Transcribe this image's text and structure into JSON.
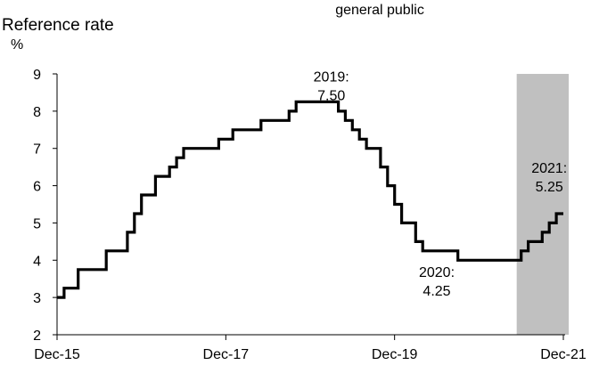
{
  "header": {
    "top_text": "general public",
    "ylabel": "Reference rate",
    "yunit": "%"
  },
  "chart_data": {
    "type": "line",
    "step": true,
    "title": "",
    "xlabel": "",
    "ylabel": "Reference rate",
    "unit": "%",
    "ylim": [
      2,
      9
    ],
    "yticks": [
      2,
      3,
      4,
      5,
      6,
      7,
      8,
      9
    ],
    "xticks": [
      "Dec-15",
      "Dec-17",
      "Dec-19",
      "Dec-21"
    ],
    "grid": false,
    "shaded_region": {
      "from": "2021-06",
      "to": "2021-12",
      "color": "#c0c0c0"
    },
    "series": [
      {
        "color": "#000000",
        "points": [
          [
            "2015-12",
            3.0
          ],
          [
            "2016-01",
            3.25
          ],
          [
            "2016-03",
            3.75
          ],
          [
            "2016-07",
            4.25
          ],
          [
            "2016-10",
            4.75
          ],
          [
            "2016-11",
            5.25
          ],
          [
            "2016-12",
            5.75
          ],
          [
            "2017-02",
            6.25
          ],
          [
            "2017-04",
            6.5
          ],
          [
            "2017-05",
            6.75
          ],
          [
            "2017-06",
            7.0
          ],
          [
            "2017-11",
            7.25
          ],
          [
            "2018-01",
            7.5
          ],
          [
            "2018-05",
            7.75
          ],
          [
            "2018-09",
            8.0
          ],
          [
            "2018-10",
            8.25
          ],
          [
            "2019-04",
            8.0
          ],
          [
            "2019-05",
            7.75
          ],
          [
            "2019-06",
            7.5
          ],
          [
            "2019-07",
            7.25
          ],
          [
            "2019-08",
            7.0
          ],
          [
            "2019-10",
            6.5
          ],
          [
            "2019-11",
            6.0
          ],
          [
            "2019-12",
            5.5
          ],
          [
            "2020-01",
            5.0
          ],
          [
            "2020-03",
            4.5
          ],
          [
            "2020-04",
            4.25
          ],
          [
            "2020-08",
            4.25
          ],
          [
            "2020-09",
            4.0
          ],
          [
            "2021-05",
            4.0
          ],
          [
            "2021-06",
            4.25
          ],
          [
            "2021-07",
            4.5
          ],
          [
            "2021-09",
            4.75
          ],
          [
            "2021-10",
            5.0
          ],
          [
            "2021-11",
            5.25
          ],
          [
            "2021-12",
            5.25
          ]
        ]
      }
    ],
    "annotations": [
      {
        "text_line1": "2019:",
        "text_line2": "7.50",
        "x": "2019-03",
        "y": 8.8
      },
      {
        "text_line1": "2020:",
        "text_line2": "4.25",
        "x": "2020-06",
        "y": 3.55
      },
      {
        "text_line1": "2021:",
        "text_line2": "5.25",
        "x": "2021-10",
        "y": 6.35
      }
    ]
  }
}
